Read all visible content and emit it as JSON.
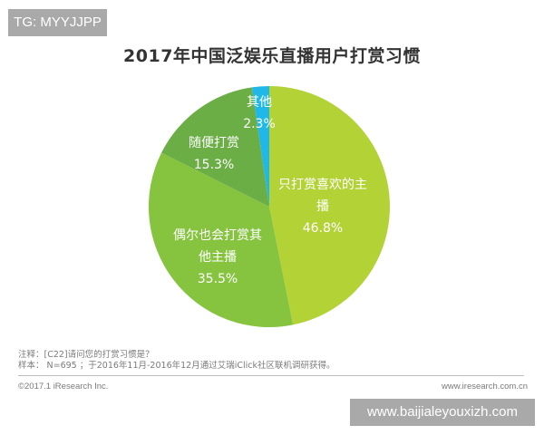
{
  "watermarks": {
    "top_left": "TG: MYYJJPP",
    "bottom_right": "www.baijialeyouxizh.com"
  },
  "chart_data": {
    "type": "pie",
    "title": "2017年中国泛娱乐直播用户打赏习惯",
    "start_angle": "12 o'clock, clockwise",
    "categories": [
      "只打赏喜欢的主播",
      "偶尔也会打赏其他主播",
      "随便打赏",
      "其他"
    ],
    "values": [
      46.8,
      35.5,
      15.3,
      2.3
    ],
    "unit": "%",
    "colors": [
      "#b3d236",
      "#86c440",
      "#6aae45",
      "#1fb8e8"
    ],
    "labels": [
      {
        "line1": "只打赏喜欢的主",
        "line2": "播",
        "value": "46.8%"
      },
      {
        "line1": "偶尔也会打赏其",
        "line2": "他主播",
        "value": "35.5%"
      },
      {
        "line1": "随便打赏",
        "line2": "",
        "value": "15.3%"
      },
      {
        "line1": "其他",
        "line2": "",
        "value": "2.3%"
      }
    ]
  },
  "footer": {
    "note": "注释：[C22]请问您的打赏习惯是？",
    "sample": "样本： N=695 ；于2016年11月-2016年12月通过艾瑞iClick社区联机调研获得。",
    "copyright": "©2017.1 iResearch Inc.",
    "site": "www.iresearch.com.cn"
  }
}
